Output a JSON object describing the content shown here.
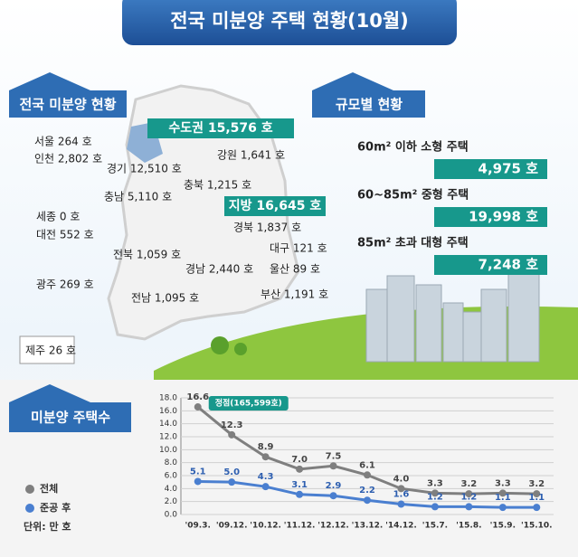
{
  "header": {
    "title": "전국 미분양 주택 현황(10월)"
  },
  "national": {
    "label": "전국 미분양 현황",
    "capital": "수도권 15,576 호",
    "local": "지방 16,645 호",
    "regions": [
      "서울 264 호",
      "인천 2,802 호",
      "경기 12,510 호",
      "강원 1,641 호",
      "충북 1,215 호",
      "충남 5,110 호",
      "세종 0 호",
      "대전 552 호",
      "전북 1,059 호",
      "광주 269 호",
      "전남 1,095 호",
      "경북 1,837 호",
      "대구  121 호",
      "경남 2,440 호",
      "울산 89 호",
      "부산 1,191 호",
      "제주 26 호"
    ]
  },
  "size": {
    "label": "규모별 현황",
    "items": [
      {
        "name": "60m² 이하 소형 주택",
        "value": "4,975 호"
      },
      {
        "name": "60~85m²  중형 주택",
        "value": "19,998 호"
      },
      {
        "name": "85m² 초과 대형 주택",
        "value": "7,248 호"
      }
    ]
  },
  "chart_data": {
    "type": "line",
    "title": "미분양 주택수",
    "categories": [
      "'09.3.",
      "'09.12.",
      "'10.12.",
      "'11.12.",
      "'12.12.",
      "'13.12.",
      "'14.12.",
      "'15.7.",
      "'15.8.",
      "'15.9.",
      "'15.10."
    ],
    "series": [
      {
        "name": "전체",
        "color": "#7f7f7f",
        "values": [
          16.6,
          12.3,
          8.9,
          7.0,
          7.5,
          6.1,
          4.0,
          3.3,
          3.2,
          3.3,
          3.2
        ],
        "value_labels": [
          "16.6",
          "12.3",
          "8.9",
          "7.0",
          "7.5",
          "6.1",
          "4.0",
          "3.3",
          "3.2",
          "3.3",
          "3.2"
        ]
      },
      {
        "name": "준공 후",
        "color": "#4a7fd0",
        "values": [
          5.1,
          5.0,
          4.3,
          3.1,
          2.9,
          2.2,
          1.6,
          1.2,
          1.2,
          1.1,
          1.1
        ],
        "value_labels": [
          "5.1",
          "5.0",
          "4.3",
          "3.1",
          "2.9",
          "2.2",
          "1.6",
          "1.2",
          "1.2",
          "1.1",
          "1.1"
        ]
      }
    ],
    "ylim": [
      0,
      18
    ],
    "yticks": [
      {
        "value": 0,
        "label": "0.0"
      },
      {
        "value": 2,
        "label": "2.0"
      },
      {
        "value": 4,
        "label": "4.0"
      },
      {
        "value": 6,
        "label": "6.0"
      },
      {
        "value": 8,
        "label": "8.0"
      },
      {
        "value": 10,
        "label": "10.0"
      },
      {
        "value": 12,
        "label": "12.0"
      },
      {
        "value": 14,
        "label": "14.0"
      },
      {
        "value": 16,
        "label": "16.0"
      },
      {
        "value": 18,
        "label": "18.0"
      }
    ],
    "grid": true,
    "annotation": "정점(165,599호)",
    "unit": "단위: 만 호"
  }
}
